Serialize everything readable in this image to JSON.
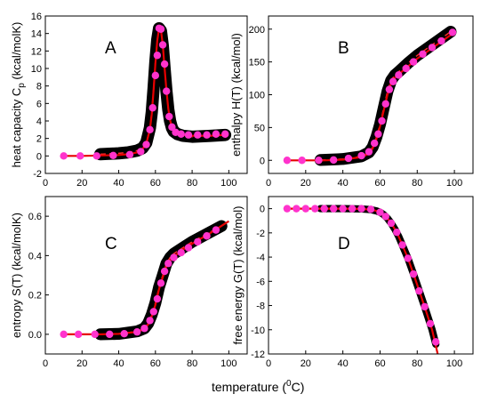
{
  "figure": {
    "shared_xlabel_main": "temperature (",
    "shared_xlabel_sup": "0",
    "shared_xlabel_tail": "C)"
  },
  "colors": {
    "band": "#000000",
    "dash": "#ff2a2a",
    "fit_line": "#e60000",
    "markers": "#ff33cc"
  },
  "chart_data": [
    {
      "panel": "A",
      "type": "line",
      "ylabel_main": "heat capacity  C",
      "ylabel_sub": "p",
      "ylabel_tail": " (kcal/molK)",
      "xlim": [
        0,
        110
      ],
      "ylim": [
        -2,
        16
      ],
      "xticks": [
        0,
        20,
        40,
        60,
        80,
        100
      ],
      "yticks": [
        -2,
        0,
        2,
        4,
        6,
        8,
        10,
        12,
        14,
        16
      ],
      "band_width": 1.4,
      "series": [
        {
          "role": "band",
          "x": [
            30,
            40,
            45,
            50,
            53,
            55,
            57,
            58,
            59,
            60,
            61,
            62,
            63,
            64,
            65,
            66,
            67,
            68,
            69,
            70,
            72,
            75,
            80,
            90,
            98
          ],
          "y": [
            0.2,
            0.3,
            0.4,
            0.6,
            0.9,
            1.5,
            3.2,
            5.0,
            7.8,
            10.8,
            13.3,
            14.6,
            14.3,
            12.6,
            10.0,
            7.4,
            5.3,
            4.0,
            3.2,
            2.8,
            2.5,
            2.3,
            2.2,
            2.3,
            2.4
          ]
        },
        {
          "role": "fit",
          "x": [
            10,
            20,
            30,
            40,
            45,
            50,
            53,
            55,
            57,
            58,
            59,
            60,
            61,
            62,
            63,
            64,
            65,
            66,
            67,
            68,
            69,
            70,
            72,
            75,
            80,
            90,
            98
          ],
          "y": [
            0,
            0,
            0.05,
            0.1,
            0.2,
            0.4,
            0.8,
            1.4,
            3.0,
            4.8,
            7.6,
            10.6,
            13.2,
            14.6,
            14.4,
            12.7,
            10.1,
            7.5,
            5.4,
            4.1,
            3.3,
            2.9,
            2.6,
            2.4,
            2.3,
            2.3,
            2.4
          ]
        },
        {
          "role": "markers",
          "x": [
            10,
            19,
            28,
            37,
            46,
            52,
            55,
            57,
            58.5,
            60,
            61,
            62,
            63,
            64,
            65,
            66,
            67.5,
            69,
            71,
            74,
            78,
            83,
            88,
            93,
            98
          ],
          "y": [
            0,
            0,
            0,
            0.05,
            0.15,
            0.5,
            1.3,
            3.0,
            5.5,
            9.2,
            11.5,
            14.6,
            14.5,
            12.7,
            10.5,
            7.4,
            4.5,
            3.3,
            2.7,
            2.5,
            2.4,
            2.4,
            2.4,
            2.5,
            2.5
          ]
        }
      ]
    },
    {
      "panel": "B",
      "type": "line",
      "ylabel_main": "enthalpy  H(T)  (kcal/mol)",
      "xlim": [
        0,
        110
      ],
      "ylim": [
        -20,
        220
      ],
      "xticks": [
        0,
        20,
        40,
        60,
        80,
        100
      ],
      "yticks": [
        0,
        50,
        100,
        150,
        200
      ],
      "band_width": 18,
      "series": [
        {
          "role": "band",
          "x": [
            28,
            40,
            50,
            54,
            56,
            58,
            60,
            62,
            64,
            66,
            68,
            70,
            75,
            80,
            90,
            98
          ],
          "y": [
            0.5,
            2,
            6,
            12,
            20,
            35,
            55,
            80,
            105,
            122,
            130,
            135,
            148,
            160,
            180,
            196
          ]
        },
        {
          "role": "fit",
          "x": [
            10,
            20,
            30,
            40,
            50,
            54,
            56,
            58,
            60,
            62,
            64,
            66,
            68,
            70,
            75,
            80,
            90,
            100
          ],
          "y": [
            0,
            0,
            0,
            1,
            5,
            10,
            18,
            32,
            52,
            76,
            100,
            118,
            126,
            131,
            143,
            155,
            175,
            195
          ]
        },
        {
          "role": "markers",
          "x": [
            10,
            18,
            27,
            35,
            43,
            50,
            54,
            57,
            59,
            61,
            63,
            65,
            67,
            70,
            74,
            78,
            83,
            88,
            93,
            99
          ],
          "y": [
            0,
            0,
            0,
            0.5,
            3,
            7,
            13,
            26,
            40,
            60,
            86,
            108,
            120,
            130,
            140,
            150,
            162,
            172,
            182,
            195
          ]
        }
      ]
    },
    {
      "panel": "C",
      "type": "line",
      "ylabel_main": "entropy  S(T)  (kcal/molK)",
      "xlim": [
        0,
        110
      ],
      "ylim": [
        -0.1,
        0.7
      ],
      "xticks": [
        0,
        20,
        40,
        60,
        80,
        100
      ],
      "yticks": [
        0.0,
        0.2,
        0.4,
        0.6
      ],
      "band_width": 0.06,
      "series": [
        {
          "role": "band",
          "x": [
            30,
            40,
            50,
            54,
            56,
            58,
            60,
            62,
            64,
            66,
            68,
            70,
            75,
            80,
            90,
            96
          ],
          "y": [
            0.0,
            0.002,
            0.015,
            0.03,
            0.055,
            0.1,
            0.16,
            0.24,
            0.3,
            0.36,
            0.39,
            0.41,
            0.44,
            0.47,
            0.52,
            0.55
          ]
        },
        {
          "role": "fit",
          "x": [
            10,
            20,
            30,
            40,
            50,
            54,
            56,
            58,
            60,
            62,
            64,
            66,
            68,
            70,
            75,
            80,
            90,
            100
          ],
          "y": [
            0,
            0,
            0,
            0.002,
            0.012,
            0.028,
            0.05,
            0.092,
            0.15,
            0.23,
            0.29,
            0.345,
            0.375,
            0.395,
            0.43,
            0.46,
            0.515,
            0.575
          ]
        },
        {
          "role": "markers",
          "x": [
            10,
            18,
            27,
            35,
            43,
            50,
            54,
            57,
            59,
            61,
            63,
            65,
            67,
            70,
            74,
            78,
            83,
            88,
            93
          ],
          "y": [
            0,
            0,
            0,
            0,
            0.003,
            0.012,
            0.03,
            0.07,
            0.115,
            0.18,
            0.26,
            0.32,
            0.36,
            0.39,
            0.415,
            0.44,
            0.47,
            0.5,
            0.53
          ]
        }
      ]
    },
    {
      "panel": "D",
      "type": "line",
      "ylabel_main": "free energy  G(T)  (kcal/mol)",
      "xlim": [
        0,
        110
      ],
      "ylim": [
        -12,
        1
      ],
      "xticks": [
        0,
        20,
        40,
        60,
        80,
        100
      ],
      "yticks": [
        0,
        -2,
        -4,
        -6,
        -8,
        -10,
        -12
      ],
      "band_width": 0.6,
      "series": [
        {
          "role": "band",
          "x": [
            28,
            40,
            50,
            55,
            58,
            60,
            62,
            64,
            66,
            68,
            70,
            72,
            75,
            78,
            80,
            84,
            88,
            90
          ],
          "y": [
            0.0,
            0.0,
            -0.02,
            -0.08,
            -0.18,
            -0.3,
            -0.5,
            -0.8,
            -1.2,
            -1.7,
            -2.3,
            -3.0,
            -4.1,
            -5.4,
            -6.3,
            -8.1,
            -10.0,
            -11.2
          ]
        },
        {
          "role": "fit",
          "x": [
            10,
            20,
            30,
            40,
            50,
            55,
            58,
            60,
            62,
            64,
            66,
            68,
            70,
            72,
            75,
            78,
            80,
            84,
            88,
            91
          ],
          "y": [
            0,
            0,
            0,
            0,
            -0.02,
            -0.08,
            -0.18,
            -0.3,
            -0.5,
            -0.8,
            -1.2,
            -1.7,
            -2.3,
            -3.0,
            -4.1,
            -5.4,
            -6.3,
            -8.1,
            -10.0,
            -12
          ]
        },
        {
          "role": "markers",
          "x": [
            10,
            15,
            20,
            25,
            30,
            35,
            40,
            45,
            50,
            55,
            60,
            63,
            66,
            69,
            72,
            75,
            78,
            81,
            84,
            87,
            90
          ],
          "y": [
            0,
            0,
            0,
            0,
            0,
            0,
            0,
            0,
            0,
            -0.05,
            -0.3,
            -0.65,
            -1.2,
            -1.95,
            -3.0,
            -4.1,
            -5.4,
            -6.8,
            -8.1,
            -9.5,
            -11.0
          ]
        }
      ]
    }
  ]
}
